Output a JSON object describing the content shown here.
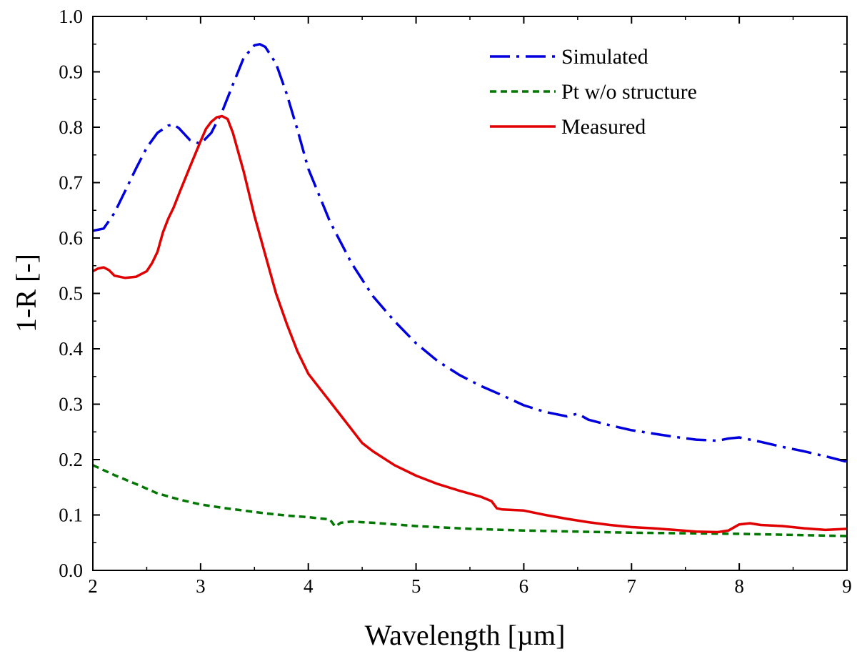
{
  "chart_data": {
    "type": "line",
    "title": "",
    "xlabel": "Wavelength [µm]",
    "ylabel": "1-R [-]",
    "xlim": [
      2,
      9
    ],
    "ylim": [
      0.0,
      1.0
    ],
    "x_ticks": [
      "2",
      "3",
      "4",
      "5",
      "6",
      "7",
      "8",
      "9"
    ],
    "y_ticks": [
      "0.0",
      "0.1",
      "0.2",
      "0.3",
      "0.4",
      "0.5",
      "0.6",
      "0.7",
      "0.8",
      "0.9",
      "1.0"
    ],
    "grid": false,
    "legend": "top-right",
    "series": [
      {
        "name": "Simulated",
        "color": "#0000dd",
        "dash": "dashdot",
        "x": [
          2.0,
          2.1,
          2.2,
          2.3,
          2.4,
          2.5,
          2.6,
          2.7,
          2.75,
          2.8,
          2.9,
          3.0,
          3.1,
          3.2,
          3.3,
          3.4,
          3.5,
          3.55,
          3.6,
          3.7,
          3.8,
          3.9,
          4.0,
          4.2,
          4.4,
          4.6,
          4.8,
          5.0,
          5.2,
          5.4,
          5.6,
          5.8,
          6.0,
          6.2,
          6.4,
          6.5,
          6.6,
          6.8,
          7.0,
          7.2,
          7.4,
          7.6,
          7.8,
          7.9,
          8.0,
          8.2,
          8.4,
          8.6,
          8.8,
          9.0
        ],
        "values": [
          0.613,
          0.617,
          0.645,
          0.685,
          0.725,
          0.763,
          0.79,
          0.803,
          0.805,
          0.798,
          0.777,
          0.77,
          0.79,
          0.828,
          0.877,
          0.925,
          0.948,
          0.95,
          0.945,
          0.915,
          0.86,
          0.795,
          0.725,
          0.63,
          0.555,
          0.495,
          0.45,
          0.41,
          0.378,
          0.353,
          0.333,
          0.316,
          0.298,
          0.286,
          0.278,
          0.283,
          0.272,
          0.262,
          0.253,
          0.247,
          0.241,
          0.236,
          0.234,
          0.238,
          0.24,
          0.232,
          0.223,
          0.215,
          0.206,
          0.196
        ]
      },
      {
        "name": "Pt w/o structure",
        "color": "#007700",
        "dash": "dashed",
        "x": [
          2.0,
          2.2,
          2.4,
          2.6,
          2.8,
          3.0,
          3.2,
          3.4,
          3.6,
          3.8,
          4.0,
          4.2,
          4.25,
          4.3,
          4.4,
          4.6,
          4.8,
          5.0,
          5.5,
          6.0,
          6.5,
          7.0,
          7.5,
          8.0,
          8.5,
          9.0
        ],
        "values": [
          0.19,
          0.172,
          0.156,
          0.139,
          0.128,
          0.119,
          0.113,
          0.108,
          0.103,
          0.099,
          0.096,
          0.092,
          0.079,
          0.086,
          0.088,
          0.086,
          0.083,
          0.08,
          0.075,
          0.072,
          0.07,
          0.068,
          0.067,
          0.066,
          0.064,
          0.062
        ]
      },
      {
        "name": "Measured",
        "color": "#e00000",
        "dash": "solid",
        "x": [
          2.0,
          2.05,
          2.1,
          2.15,
          2.2,
          2.3,
          2.4,
          2.5,
          2.55,
          2.6,
          2.65,
          2.7,
          2.75,
          2.8,
          2.9,
          3.0,
          3.05,
          3.1,
          3.15,
          3.2,
          3.25,
          3.3,
          3.4,
          3.5,
          3.6,
          3.7,
          3.8,
          3.9,
          4.0,
          4.1,
          4.2,
          4.3,
          4.4,
          4.5,
          4.6,
          4.8,
          5.0,
          5.2,
          5.4,
          5.6,
          5.7,
          5.75,
          5.8,
          6.0,
          6.2,
          6.4,
          6.6,
          6.8,
          7.0,
          7.2,
          7.4,
          7.6,
          7.8,
          7.9,
          8.0,
          8.1,
          8.2,
          8.4,
          8.6,
          8.8,
          9.0
        ],
        "values": [
          0.54,
          0.545,
          0.547,
          0.542,
          0.532,
          0.528,
          0.53,
          0.54,
          0.555,
          0.575,
          0.61,
          0.635,
          0.655,
          0.68,
          0.728,
          0.775,
          0.797,
          0.81,
          0.818,
          0.82,
          0.815,
          0.79,
          0.72,
          0.64,
          0.57,
          0.5,
          0.445,
          0.395,
          0.355,
          0.33,
          0.305,
          0.28,
          0.255,
          0.23,
          0.215,
          0.19,
          0.171,
          0.156,
          0.144,
          0.133,
          0.125,
          0.112,
          0.11,
          0.108,
          0.1,
          0.093,
          0.087,
          0.082,
          0.078,
          0.076,
          0.073,
          0.07,
          0.069,
          0.072,
          0.083,
          0.085,
          0.082,
          0.08,
          0.076,
          0.073,
          0.075
        ]
      }
    ]
  }
}
